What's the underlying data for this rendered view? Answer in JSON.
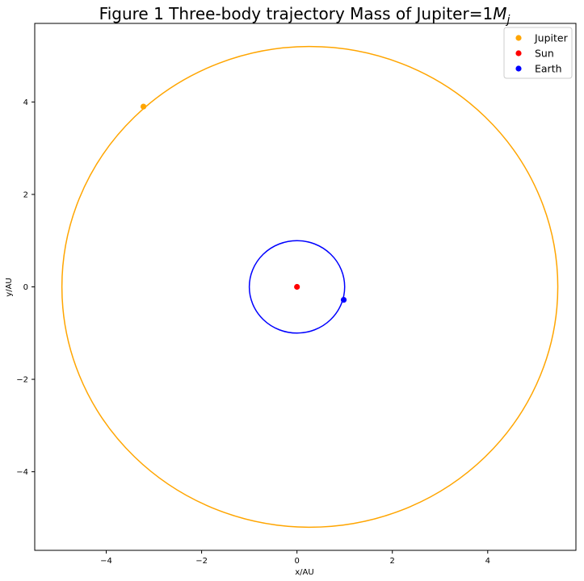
{
  "chart_data": {
    "type": "scatter",
    "title": "Figure 1 Three-body trajectory  Mass of Jupiter=1",
    "title_math": "M",
    "title_math_sub": "j",
    "xlabel": "x/AU",
    "ylabel": "y/AU",
    "xlim": [
      -5.5,
      5.85
    ],
    "ylim": [
      -5.7,
      5.7
    ],
    "xticks": [
      -4,
      -2,
      0,
      2,
      4
    ],
    "yticks": [
      -4,
      -2,
      0,
      2,
      4
    ],
    "xtick_labels": [
      "−4",
      "−2",
      "0",
      "2",
      "4"
    ],
    "ytick_labels": [
      "−4",
      "−2",
      "0",
      "2",
      "4"
    ],
    "grid": false,
    "legend_position": "top-right",
    "series": [
      {
        "name": "Jupiter",
        "color": "#FFA500",
        "kind": "orbit",
        "orbit": {
          "cx": 0.27,
          "cy": 0.0,
          "rx": 5.2,
          "ry": 5.2
        },
        "marker": {
          "x": -3.22,
          "y": 3.9
        }
      },
      {
        "name": "Sun",
        "color": "#FF0000",
        "kind": "point",
        "marker": {
          "x": 0.0,
          "y": 0.0
        }
      },
      {
        "name": "Earth",
        "color": "#0000FF",
        "kind": "orbit",
        "orbit": {
          "cx": 0.0,
          "cy": 0.0,
          "rx": 1.0,
          "ry": 1.0
        },
        "marker": {
          "x": 0.98,
          "y": -0.28
        }
      }
    ]
  }
}
